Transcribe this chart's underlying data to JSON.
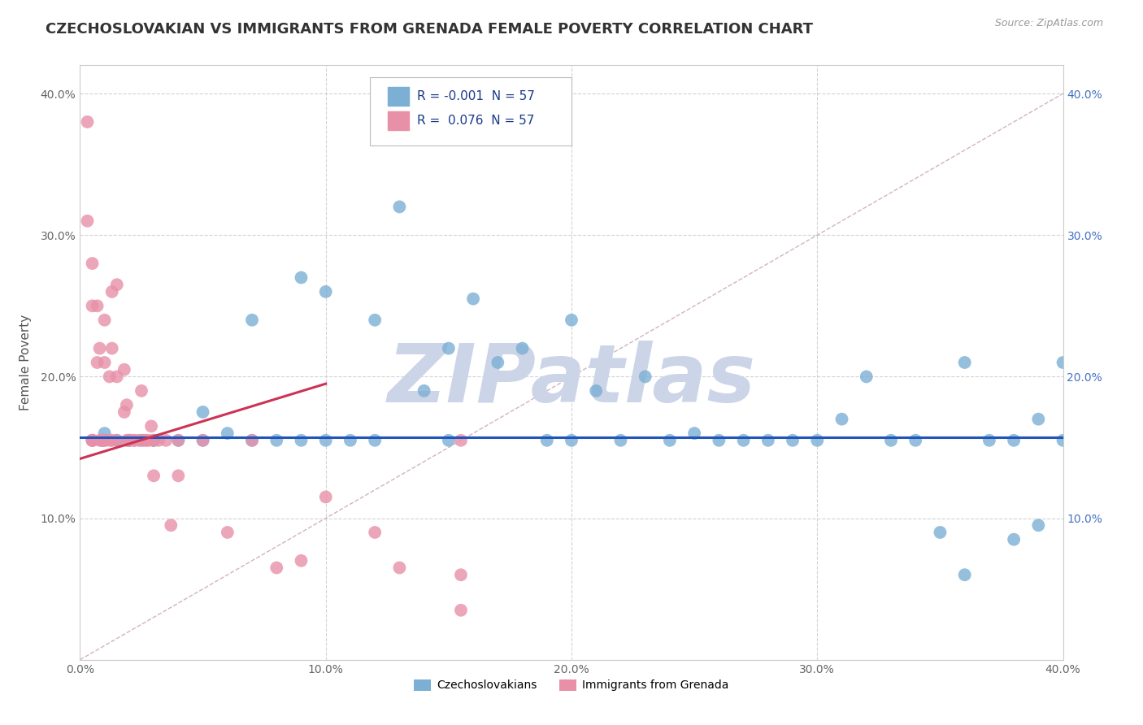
{
  "title": "CZECHOSLOVAKIAN VS IMMIGRANTS FROM GRENADA FEMALE POVERTY CORRELATION CHART",
  "source": "Source: ZipAtlas.com",
  "ylabel": "Female Poverty",
  "xlim": [
    0.0,
    0.4
  ],
  "ylim": [
    0.0,
    0.42
  ],
  "xticks": [
    0.0,
    0.1,
    0.2,
    0.3,
    0.4
  ],
  "yticks": [
    0.0,
    0.1,
    0.2,
    0.3,
    0.4
  ],
  "legend_entries": [
    {
      "label": "Czechoslovakians",
      "color": "#a8c8e8",
      "R": "-0.001",
      "N": "57"
    },
    {
      "label": "Immigrants from Grenada",
      "color": "#f0a0b8",
      "R": "0.076",
      "N": "57"
    }
  ],
  "blue_scatter_x": [
    0.005,
    0.01,
    0.01,
    0.015,
    0.02,
    0.02,
    0.025,
    0.03,
    0.03,
    0.04,
    0.05,
    0.05,
    0.06,
    0.07,
    0.07,
    0.08,
    0.09,
    0.09,
    0.1,
    0.1,
    0.11,
    0.12,
    0.12,
    0.13,
    0.14,
    0.15,
    0.15,
    0.16,
    0.17,
    0.18,
    0.19,
    0.2,
    0.2,
    0.21,
    0.22,
    0.23,
    0.24,
    0.25,
    0.26,
    0.27,
    0.28,
    0.29,
    0.3,
    0.31,
    0.32,
    0.33,
    0.34,
    0.35,
    0.36,
    0.36,
    0.37,
    0.38,
    0.38,
    0.39,
    0.39,
    0.4,
    0.4
  ],
  "blue_scatter_y": [
    0.155,
    0.16,
    0.155,
    0.155,
    0.155,
    0.155,
    0.155,
    0.155,
    0.155,
    0.155,
    0.175,
    0.155,
    0.16,
    0.24,
    0.155,
    0.155,
    0.27,
    0.155,
    0.155,
    0.26,
    0.155,
    0.24,
    0.155,
    0.32,
    0.19,
    0.22,
    0.155,
    0.255,
    0.21,
    0.22,
    0.155,
    0.24,
    0.155,
    0.19,
    0.155,
    0.2,
    0.155,
    0.16,
    0.155,
    0.155,
    0.155,
    0.155,
    0.155,
    0.17,
    0.2,
    0.155,
    0.155,
    0.09,
    0.06,
    0.21,
    0.155,
    0.155,
    0.085,
    0.17,
    0.095,
    0.21,
    0.155
  ],
  "pink_scatter_x": [
    0.003,
    0.003,
    0.005,
    0.005,
    0.005,
    0.005,
    0.005,
    0.007,
    0.007,
    0.008,
    0.008,
    0.009,
    0.009,
    0.009,
    0.01,
    0.01,
    0.01,
    0.012,
    0.012,
    0.013,
    0.013,
    0.013,
    0.015,
    0.015,
    0.015,
    0.018,
    0.018,
    0.019,
    0.019,
    0.02,
    0.02,
    0.022,
    0.022,
    0.024,
    0.025,
    0.026,
    0.027,
    0.028,
    0.029,
    0.03,
    0.03,
    0.032,
    0.035,
    0.037,
    0.04,
    0.04,
    0.05,
    0.06,
    0.07,
    0.08,
    0.09,
    0.1,
    0.12,
    0.13,
    0.155,
    0.155,
    0.155
  ],
  "pink_scatter_y": [
    0.38,
    0.31,
    0.155,
    0.155,
    0.155,
    0.25,
    0.28,
    0.21,
    0.25,
    0.155,
    0.22,
    0.155,
    0.155,
    0.155,
    0.24,
    0.21,
    0.155,
    0.2,
    0.155,
    0.26,
    0.22,
    0.155,
    0.265,
    0.2,
    0.155,
    0.205,
    0.175,
    0.18,
    0.155,
    0.155,
    0.155,
    0.155,
    0.155,
    0.155,
    0.19,
    0.155,
    0.155,
    0.155,
    0.165,
    0.155,
    0.13,
    0.155,
    0.155,
    0.095,
    0.155,
    0.13,
    0.155,
    0.09,
    0.155,
    0.065,
    0.07,
    0.115,
    0.09,
    0.065,
    0.035,
    0.155,
    0.06
  ],
  "blue_trend_y_start": 0.157,
  "blue_trend_y_end": 0.157,
  "pink_trend_x_start": 0.0,
  "pink_trend_y_start": 0.142,
  "pink_trend_x_end": 0.1,
  "pink_trend_y_end": 0.195,
  "diag_line_x": [
    0.0,
    0.4
  ],
  "diag_line_y": [
    0.0,
    0.4
  ],
  "blue_line_color": "#2255bb",
  "pink_line_color": "#cc3355",
  "blue_dot_color": "#7bafd4",
  "pink_dot_color": "#e890a8",
  "grid_color": "#c8c8c8",
  "diag_color": "#ccaabb",
  "watermark_text": "ZIPatlas",
  "watermark_color": "#ccd5e8",
  "background_color": "#ffffff",
  "title_fontsize": 13,
  "axis_label_fontsize": 11,
  "tick_fontsize": 10
}
